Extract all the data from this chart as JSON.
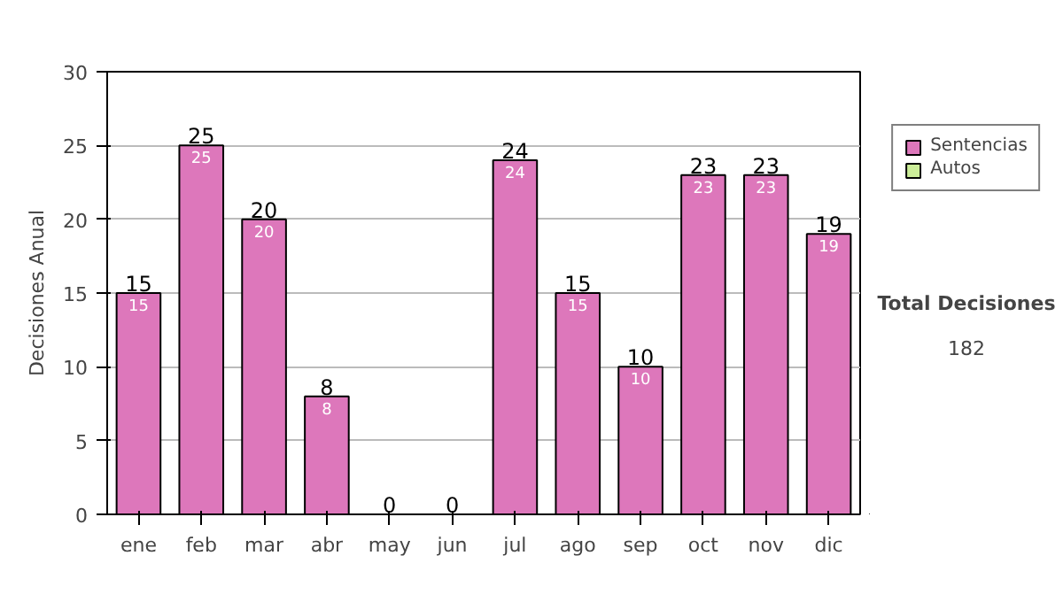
{
  "chart_data": {
    "type": "bar",
    "stacked": true,
    "ylabel": "Decisiones Anual",
    "categories": [
      "ene",
      "feb",
      "mar",
      "abr",
      "may",
      "jun",
      "jul",
      "ago",
      "sep",
      "oct",
      "nov",
      "dic"
    ],
    "series": [
      {
        "name": "Sentencias",
        "color": "#dd77bb",
        "values": [
          15,
          25,
          20,
          8,
          0,
          0,
          24,
          15,
          10,
          23,
          23,
          19
        ],
        "value_labels": [
          "15",
          "25",
          "20",
          "8",
          null,
          null,
          "24",
          "15",
          "10",
          "23",
          "23",
          "19"
        ]
      },
      {
        "name": "Autos",
        "color": "#ccee99",
        "values": [
          0,
          0,
          0,
          0,
          0,
          0,
          0,
          0,
          0,
          0,
          0,
          0
        ]
      }
    ],
    "totals": [
      "15",
      "25",
      "20",
      "8",
      "0",
      "0",
      "24",
      "15",
      "10",
      "23",
      "23",
      "19"
    ],
    "ylim": [
      0,
      30
    ],
    "yticks": [
      0,
      5,
      10,
      15,
      20,
      25,
      30
    ],
    "grid": "y",
    "legend": "right",
    "annotations": [
      "Total Decisiones",
      "182"
    ]
  }
}
